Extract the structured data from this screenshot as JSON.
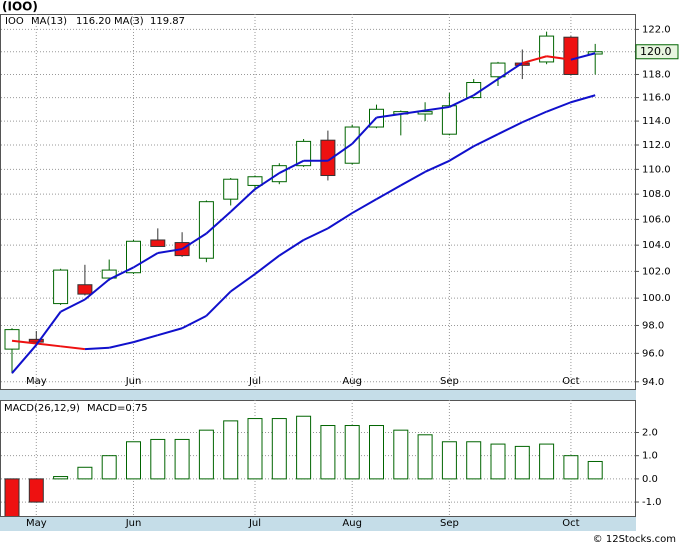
{
  "title": "(IOO)",
  "footer": "© 12Stocks.com",
  "chart_data": [
    {
      "type": "candlestick",
      "symbol": "IOO",
      "log": true,
      "grid": true,
      "categories": [
        null,
        "May",
        null,
        null,
        null,
        "Jun",
        null,
        null,
        null,
        null,
        "Jul",
        null,
        null,
        null,
        "Aug",
        null,
        null,
        null,
        "Sep",
        null,
        null,
        null,
        null,
        "Oct",
        null
      ],
      "open": [
        96.3,
        97.0,
        99.6,
        101.0,
        101.5,
        101.9,
        104.4,
        104.2,
        103.0,
        107.6,
        108.7,
        109.0,
        110.3,
        112.4,
        110.5,
        113.5,
        114.6,
        114.6,
        112.9,
        116.0,
        117.8,
        119.0,
        119.1,
        121.3,
        119.8
      ],
      "high": [
        97.8,
        97.6,
        102.2,
        102.5,
        102.9,
        104.4,
        105.3,
        105.0,
        107.5,
        109.3,
        109.5,
        110.5,
        112.5,
        113.2,
        113.7,
        115.4,
        114.9,
        115.6,
        116.4,
        117.6,
        119.1,
        120.2,
        121.8,
        121.4,
        120.7
      ],
      "low": [
        94.6,
        96.5,
        99.5,
        100.2,
        101.3,
        101.8,
        103.9,
        103.1,
        102.7,
        107.1,
        108.3,
        108.8,
        110.2,
        109.1,
        110.4,
        113.4,
        112.8,
        114.0,
        112.8,
        115.9,
        117.0,
        117.6,
        118.9,
        117.9,
        118.0
      ],
      "close": [
        97.7,
        96.8,
        102.1,
        100.3,
        102.1,
        104.3,
        103.9,
        103.2,
        107.4,
        109.2,
        109.4,
        110.3,
        112.3,
        109.5,
        113.5,
        115.0,
        114.8,
        114.8,
        115.3,
        117.3,
        119.0,
        118.8,
        121.4,
        118.0,
        120.0
      ],
      "up_color": "#006400",
      "down_color": "#ee1111",
      "series": [
        {
          "name": "MA(13)",
          "legend_value": {
            "value": 116.2,
            "label": "116.20"
          },
          "values": [
            96.9,
            96.7,
            96.5,
            96.3,
            96.4,
            96.8,
            97.3,
            97.8,
            98.7,
            100.5,
            101.8,
            103.2,
            104.4,
            105.3,
            106.5,
            107.6,
            108.7,
            109.8,
            110.7,
            111.9,
            112.9,
            113.9,
            114.8,
            115.6,
            116.2
          ],
          "colors": [
            "#ee1111",
            "#ee1111",
            "#ee1111",
            "#ee1111",
            "#1010cc",
            "#1010cc",
            "#1010cc",
            "#1010cc",
            "#1010cc",
            "#1010cc",
            "#1010cc",
            "#1010cc",
            "#1010cc",
            "#1010cc",
            "#1010cc",
            "#1010cc",
            "#1010cc",
            "#1010cc",
            "#1010cc",
            "#1010cc",
            "#1010cc",
            "#1010cc",
            "#1010cc",
            "#1010cc",
            "#1010cc"
          ]
        },
        {
          "name": "MA(3)",
          "legend_value": {
            "value": 119.87,
            "label": "119.87"
          },
          "values": [
            94.6,
            96.6,
            99.0,
            99.9,
            101.4,
            102.3,
            103.4,
            103.7,
            104.9,
            106.6,
            108.4,
            109.7,
            110.7,
            110.7,
            112.1,
            114.3,
            114.6,
            114.9,
            115.2,
            116.2,
            117.6,
            119.0,
            119.6,
            119.3,
            119.87
          ],
          "colors": [
            "#1010cc",
            "#1010cc",
            "#1010cc",
            "#1010cc",
            "#1010cc",
            "#1010cc",
            "#1010cc",
            "#1010cc",
            "#1010cc",
            "#1010cc",
            "#1010cc",
            "#1010cc",
            "#1010cc",
            "#1010cc",
            "#1010cc",
            "#1010cc",
            "#1010cc",
            "#1010cc",
            "#1010cc",
            "#1010cc",
            "#1010cc",
            "#1010cc",
            "#ee1111",
            "#ee1111",
            "#1010cc"
          ]
        }
      ],
      "last_label": {
        "value": 120.0,
        "label": "120.0"
      },
      "ylim": [
        93.5,
        123.4
      ],
      "yticks": [
        {
          "value": 94,
          "label": "94.0"
        },
        {
          "value": 96,
          "label": "96.0"
        },
        {
          "value": 98,
          "label": "98.0"
        },
        {
          "value": 100,
          "label": "100.0"
        },
        {
          "value": 102,
          "label": "102.0"
        },
        {
          "value": 104,
          "label": "104.0"
        },
        {
          "value": 106,
          "label": "106.0"
        },
        {
          "value": 108,
          "label": "108.0"
        },
        {
          "value": 110,
          "label": "110.0"
        },
        {
          "value": 112,
          "label": "112.0"
        },
        {
          "value": 114,
          "label": "114.0"
        },
        {
          "value": 116,
          "label": "116.0"
        },
        {
          "value": 118,
          "label": "118.0"
        },
        {
          "value": 120,
          "label": "120.0"
        },
        {
          "value": 122,
          "label": "122.0"
        }
      ]
    },
    {
      "type": "bar",
      "name": "MACD(26,12,9)",
      "legend_value": {
        "value": 0.75,
        "label": "MACD=0.75"
      },
      "grid": true,
      "categories": [
        null,
        "May",
        null,
        null,
        null,
        "Jun",
        null,
        null,
        null,
        null,
        "Jul",
        null,
        null,
        null,
        "Aug",
        null,
        null,
        null,
        "Sep",
        null,
        null,
        null,
        null,
        "Oct",
        null
      ],
      "values": [
        -1.7,
        -1.0,
        0.1,
        0.5,
        1.0,
        1.6,
        1.7,
        1.7,
        2.1,
        2.5,
        2.6,
        2.6,
        2.7,
        2.3,
        2.3,
        2.3,
        2.1,
        1.9,
        1.6,
        1.6,
        1.5,
        1.4,
        1.5,
        1.0,
        0.75
      ],
      "pos_color": "#006400",
      "neg_color": "#ee1111",
      "ylim": [
        -1.6,
        3.4
      ],
      "yticks": [
        {
          "value": -1,
          "label": "-1.0"
        },
        {
          "value": 0,
          "label": "0.0"
        },
        {
          "value": 1,
          "label": "1.0"
        },
        {
          "value": 2,
          "label": "2.0"
        }
      ]
    }
  ]
}
